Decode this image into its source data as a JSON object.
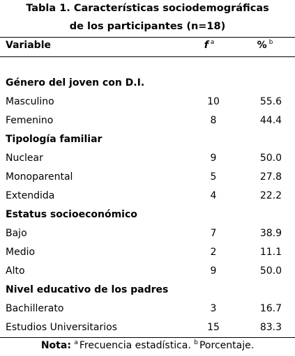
{
  "table": {
    "caption_line1": "Tabla 1. Características sociodemográficas",
    "caption_line2": "de los participantes (n=18)",
    "header": {
      "variable": "Variable",
      "f": "f",
      "f_mark": "a",
      "pct": "%",
      "pct_mark": "b"
    },
    "sections": [
      {
        "title": "Género del joven con D.I.",
        "rows": [
          {
            "label": "Masculino",
            "f": "10",
            "pct": "55.6"
          },
          {
            "label": "Femenino",
            "f": "8",
            "pct": "44.4"
          }
        ]
      },
      {
        "title": "Tipología familiar",
        "rows": [
          {
            "label": "Nuclear",
            "f": "9",
            "pct": "50.0"
          },
          {
            "label": "Monoparental",
            "f": "5",
            "pct": "27.8"
          },
          {
            "label": "Extendida",
            "f": "4",
            "pct": "22.2"
          }
        ]
      },
      {
        "title": "Estatus socioeconómico",
        "rows": [
          {
            "label": "Bajo",
            "f": "7",
            "pct": "38.9"
          },
          {
            "label": "Medio",
            "f": "2",
            "pct": "11.1"
          },
          {
            "label": "Alto",
            "f": "9",
            "pct": "50.0"
          }
        ]
      },
      {
        "title": "Nivel educativo de los padres",
        "rows": [
          {
            "label": "Bachillerato",
            "f": "3",
            "pct": "16.7"
          },
          {
            "label": "Estudios Universitarios",
            "f": "15",
            "pct": "83.3"
          }
        ]
      }
    ],
    "note": {
      "label": "Nota:",
      "mark_a": "a",
      "text_a": "Frecuencia estadística.",
      "mark_b": "b",
      "text_b": "Porcentaje."
    }
  }
}
